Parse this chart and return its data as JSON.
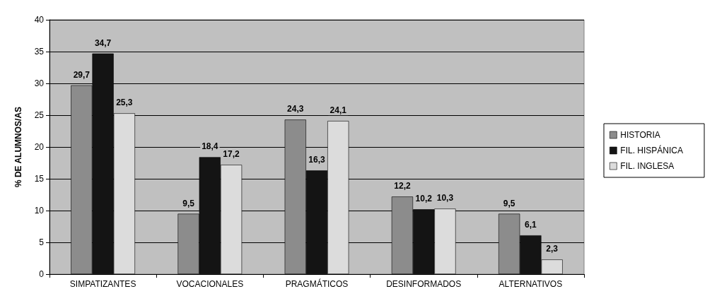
{
  "chart_data": {
    "type": "bar",
    "ylabel": "% DE ALUMNOS/AS",
    "categories": [
      "SIMPATIZANTES",
      "VOCACIONALES",
      "PRAGMÁTICOS",
      "DESINFORMADOS",
      "ALTERNATIVOS"
    ],
    "series": [
      {
        "name": "HISTORIA",
        "color": "#8c8c8c",
        "values": [
          29.7,
          9.5,
          24.3,
          12.2,
          9.5
        ],
        "value_labels": [
          "29,7",
          "9,5",
          "24,3",
          "12,2",
          "9,5"
        ]
      },
      {
        "name": "FIL. HISPÁNICA",
        "color": "#141414",
        "values": [
          34.7,
          18.4,
          16.3,
          10.2,
          6.1
        ],
        "value_labels": [
          "34,7",
          "18,4",
          "16,3",
          "10,2",
          "6,1"
        ]
      },
      {
        "name": "FIL. INGLESA",
        "color": "#dcdcdc",
        "values": [
          25.3,
          17.2,
          24.1,
          10.3,
          2.3
        ],
        "value_labels": [
          "25,3",
          "17,2",
          "24,1",
          "10,3",
          "2,3"
        ]
      }
    ],
    "ylim": [
      0,
      40
    ],
    "yticks": [
      0,
      5,
      10,
      15,
      20,
      25,
      30,
      35,
      40
    ],
    "grid": "y",
    "legend": "right"
  }
}
